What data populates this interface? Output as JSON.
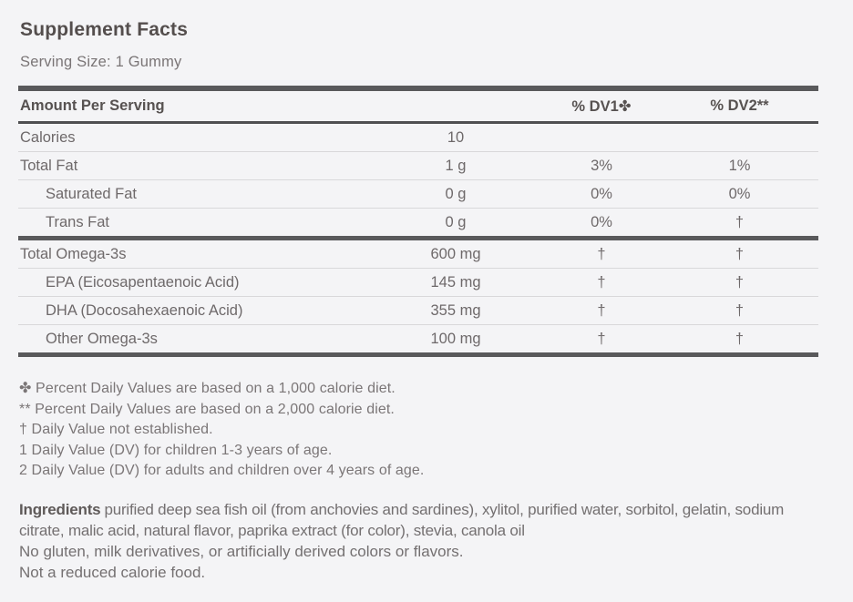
{
  "header": {
    "title": "Supplement Facts",
    "serving_size": "Serving Size: 1 Gummy"
  },
  "table": {
    "headers": {
      "name": "Amount Per Serving",
      "amount": "",
      "dv1": "% DV1✤",
      "dv2": "% DV2**"
    },
    "rows": [
      {
        "name": "Calories",
        "amount": "10",
        "dv1": "",
        "dv2": ""
      },
      {
        "name": "Total Fat",
        "amount": "1 g",
        "dv1": "3%",
        "dv2": "1%"
      },
      {
        "name": "Saturated Fat",
        "amount": "0 g",
        "dv1": "0%",
        "dv2": "0%"
      },
      {
        "name": "Trans Fat",
        "amount": "0 g",
        "dv1": "0%",
        "dv2": "†"
      },
      {
        "name": "Total Omega-3s",
        "amount": "600 mg",
        "dv1": "†",
        "dv2": "†"
      },
      {
        "name": "EPA (Eicosapentaenoic Acid)",
        "amount": "145 mg",
        "dv1": "†",
        "dv2": "†"
      },
      {
        "name": "DHA (Docosahexaenoic Acid)",
        "amount": "355 mg",
        "dv1": "†",
        "dv2": "†"
      },
      {
        "name": "Other Omega-3s",
        "amount": "100 mg",
        "dv1": "†",
        "dv2": "†"
      }
    ]
  },
  "footnotes": [
    "✤ Percent Daily Values are based on a 1,000 calorie diet.",
    "** Percent Daily Values are based on a 2,000 calorie diet.",
    "† Daily Value not established.",
    "1 Daily Value (DV) for children 1-3 years of age.",
    "2 Daily Value (DV) for adults and children over 4 years of age."
  ],
  "ingredients": {
    "label": "Ingredients",
    "text": "purified deep sea fish oil (from anchovies and sardines), xylitol, purified water, sorbitol, gelatin, sodium citrate, malic acid, natural flavor, paprika extract (for color), stevia, canola oil",
    "note1": "No gluten, milk derivatives, or artificially derived colors or flavors.",
    "note2": "Not a reduced calorie food."
  },
  "colors": {
    "background": "#f4f4f6",
    "heavy_rule": "#59595b",
    "light_rule": "#d9d8da",
    "title_text": "#544e4d",
    "body_text": "#6e696a",
    "muted_text": "#7b7677"
  }
}
